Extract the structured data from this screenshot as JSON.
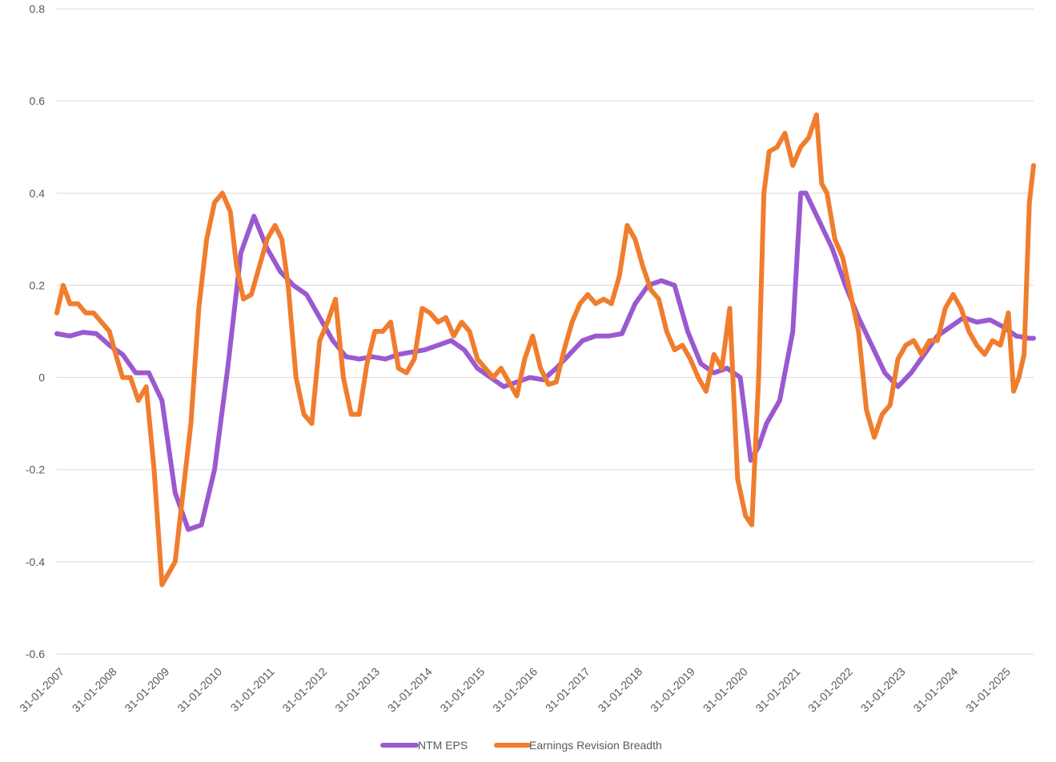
{
  "chart_data": {
    "type": "line",
    "title": "",
    "xlabel": "",
    "ylabel": "",
    "ylim": [
      -0.6,
      0.8
    ],
    "yticks": [
      0.8,
      0.6,
      0.4,
      0.2,
      0,
      -0.2,
      -0.4,
      -0.6
    ],
    "ytick_labels": [
      "0.8",
      "0.6",
      "0.4",
      "0.2",
      "0",
      "-0.2",
      "-0.4",
      "-0.6"
    ],
    "grid": true,
    "legend_position": "bottom",
    "x_start": "31-01-2007",
    "x_end": "31-08-2025",
    "x_tick_labels": [
      "31-01-2007",
      "31-01-2008",
      "31-01-2009",
      "31-01-2010",
      "31-01-2011",
      "31-01-2012",
      "31-01-2013",
      "31-01-2014",
      "31-01-2015",
      "31-01-2016",
      "31-01-2017",
      "31-01-2018",
      "31-01-2019",
      "31-01-2020",
      "31-01-2021",
      "31-01-2022",
      "31-01-2023",
      "31-01-2024",
      "31-01-2025"
    ],
    "series": [
      {
        "name": "NTM EPS",
        "color": "#9b59d0",
        "x": [
          2007.0,
          2007.25,
          2007.5,
          2007.75,
          2008.0,
          2008.25,
          2008.5,
          2008.75,
          2009.0,
          2009.25,
          2009.5,
          2009.75,
          2010.0,
          2010.25,
          2010.5,
          2010.75,
          2011.0,
          2011.25,
          2011.5,
          2011.75,
          2012.0,
          2012.25,
          2012.5,
          2012.75,
          2013.0,
          2013.25,
          2013.5,
          2013.75,
          2014.0,
          2014.25,
          2014.5,
          2014.75,
          2015.0,
          2015.25,
          2015.5,
          2015.75,
          2016.0,
          2016.25,
          2016.5,
          2016.75,
          2017.0,
          2017.25,
          2017.5,
          2017.75,
          2018.0,
          2018.25,
          2018.5,
          2018.75,
          2019.0,
          2019.25,
          2019.5,
          2019.75,
          2020.0,
          2020.2,
          2020.35,
          2020.5,
          2020.75,
          2021.0,
          2021.15,
          2021.25,
          2021.5,
          2021.75,
          2022.0,
          2022.25,
          2022.5,
          2022.75,
          2023.0,
          2023.25,
          2023.5,
          2023.75,
          2024.0,
          2024.25,
          2024.5,
          2024.75,
          2025.0,
          2025.25,
          2025.5,
          2025.58
        ],
        "values": [
          0.095,
          0.09,
          0.098,
          0.095,
          0.07,
          0.05,
          0.01,
          0.01,
          -0.05,
          -0.25,
          -0.33,
          -0.32,
          -0.2,
          0.02,
          0.27,
          0.35,
          0.28,
          0.23,
          0.2,
          0.18,
          0.13,
          0.08,
          0.045,
          0.04,
          0.045,
          0.04,
          0.05,
          0.055,
          0.06,
          0.07,
          0.08,
          0.06,
          0.02,
          0.0,
          -0.02,
          -0.01,
          0.0,
          -0.005,
          0.02,
          0.05,
          0.08,
          0.09,
          0.09,
          0.095,
          0.16,
          0.2,
          0.21,
          0.2,
          0.1,
          0.03,
          0.01,
          0.02,
          0.0,
          -0.18,
          -0.15,
          -0.1,
          -0.05,
          0.1,
          0.4,
          0.4,
          0.34,
          0.28,
          0.2,
          0.13,
          0.07,
          0.01,
          -0.02,
          0.01,
          0.05,
          0.09,
          0.11,
          0.13,
          0.12,
          0.125,
          0.11,
          0.09,
          0.085,
          0.085
        ]
      },
      {
        "name": "Earnings Revision Breadth",
        "color": "#f07d2e",
        "x": [
          2007.0,
          2007.12,
          2007.25,
          2007.4,
          2007.55,
          2007.7,
          2007.85,
          2008.0,
          2008.12,
          2008.25,
          2008.4,
          2008.55,
          2008.7,
          2008.85,
          2009.0,
          2009.15,
          2009.25,
          2009.4,
          2009.55,
          2009.7,
          2009.85,
          2010.0,
          2010.15,
          2010.3,
          2010.42,
          2010.55,
          2010.7,
          2010.85,
          2011.0,
          2011.15,
          2011.28,
          2011.4,
          2011.55,
          2011.7,
          2011.85,
          2012.0,
          2012.15,
          2012.3,
          2012.45,
          2012.6,
          2012.75,
          2012.9,
          2013.05,
          2013.2,
          2013.35,
          2013.5,
          2013.65,
          2013.8,
          2013.95,
          2014.1,
          2014.25,
          2014.4,
          2014.55,
          2014.7,
          2014.85,
          2015.0,
          2015.15,
          2015.3,
          2015.45,
          2015.6,
          2015.75,
          2015.9,
          2016.05,
          2016.2,
          2016.35,
          2016.5,
          2016.65,
          2016.8,
          2016.95,
          2017.1,
          2017.25,
          2017.4,
          2017.55,
          2017.7,
          2017.85,
          2018.0,
          2018.15,
          2018.3,
          2018.45,
          2018.6,
          2018.75,
          2018.9,
          2019.05,
          2019.2,
          2019.35,
          2019.5,
          2019.65,
          2019.8,
          2019.95,
          2020.1,
          2020.22,
          2020.35,
          2020.45,
          2020.55,
          2020.7,
          2020.85,
          2021.0,
          2021.15,
          2021.3,
          2021.45,
          2021.55,
          2021.65,
          2021.8,
          2021.95,
          2022.1,
          2022.25,
          2022.4,
          2022.55,
          2022.7,
          2022.85,
          2023.0,
          2023.15,
          2023.3,
          2023.45,
          2023.6,
          2023.75,
          2023.9,
          2024.05,
          2024.2,
          2024.35,
          2024.5,
          2024.65,
          2024.8,
          2024.95,
          2025.1,
          2025.2,
          2025.3,
          2025.4,
          2025.5,
          2025.58
        ],
        "values": [
          0.14,
          0.2,
          0.16,
          0.16,
          0.14,
          0.14,
          0.12,
          0.1,
          0.05,
          0.0,
          0.0,
          -0.05,
          -0.02,
          -0.2,
          -0.45,
          -0.42,
          -0.4,
          -0.25,
          -0.1,
          0.15,
          0.3,
          0.38,
          0.4,
          0.36,
          0.24,
          0.17,
          0.18,
          0.24,
          0.3,
          0.33,
          0.3,
          0.2,
          0.0,
          -0.08,
          -0.1,
          0.08,
          0.12,
          0.17,
          0.0,
          -0.08,
          -0.08,
          0.03,
          0.1,
          0.1,
          0.12,
          0.02,
          0.01,
          0.04,
          0.15,
          0.14,
          0.12,
          0.13,
          0.09,
          0.12,
          0.1,
          0.04,
          0.02,
          0.0,
          0.02,
          -0.01,
          -0.04,
          0.04,
          0.09,
          0.02,
          -0.015,
          -0.01,
          0.06,
          0.12,
          0.16,
          0.18,
          0.16,
          0.17,
          0.16,
          0.22,
          0.33,
          0.3,
          0.24,
          0.19,
          0.17,
          0.1,
          0.06,
          0.07,
          0.04,
          0.0,
          -0.03,
          0.05,
          0.02,
          0.15,
          -0.22,
          -0.3,
          -0.32,
          0.0,
          0.4,
          0.49,
          0.5,
          0.53,
          0.46,
          0.5,
          0.52,
          0.57,
          0.42,
          0.4,
          0.3,
          0.26,
          0.18,
          0.1,
          -0.07,
          -0.13,
          -0.08,
          -0.06,
          0.04,
          0.07,
          0.08,
          0.05,
          0.08,
          0.08,
          0.15,
          0.18,
          0.15,
          0.1,
          0.07,
          0.05,
          0.08,
          0.07,
          0.14,
          -0.03,
          0.0,
          0.05,
          0.38,
          0.46
        ]
      }
    ]
  }
}
